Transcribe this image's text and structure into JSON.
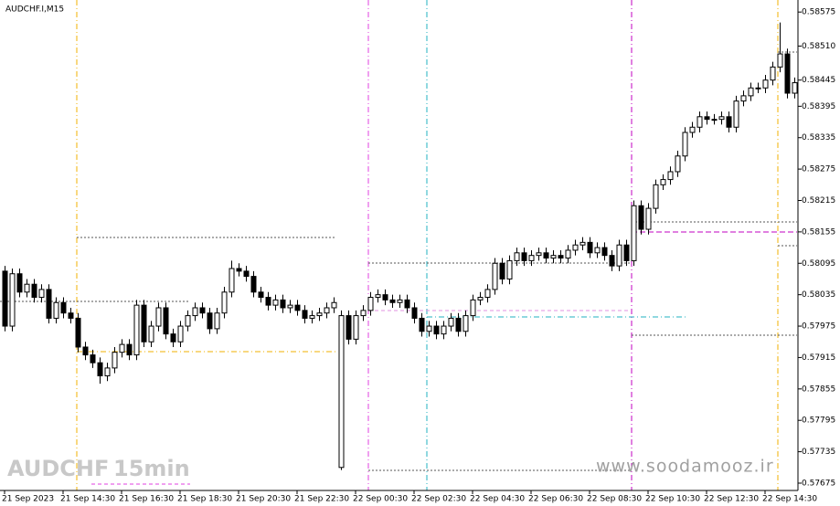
{
  "chart_data": {
    "type": "candlestick",
    "title": "AUDCHF.I,M15",
    "annotations": [
      "AUDCHF",
      "15min",
      "www.soodamooz.ir"
    ],
    "up_color": "#ffffff",
    "down_color": "#000000",
    "outline_color": "#000000",
    "ylim": [
      0.57661,
      0.58598
    ],
    "yticks": [
      0.58575,
      {
        "value": 0.5851,
        "label": "0.58510"
      },
      0.58445,
      0.58395,
      0.58335,
      0.58275,
      0.58215,
      0.58155,
      0.58095,
      0.58035,
      0.57975,
      0.57915,
      0.57855,
      0.57795,
      0.57735,
      0.57675
    ],
    "categories": [
      "21 Sep 2023",
      null,
      null,
      null,
      null,
      null,
      null,
      null,
      "21 Sep 14:30",
      null,
      null,
      null,
      null,
      null,
      null,
      null,
      "21 Sep 16:30",
      null,
      null,
      null,
      null,
      null,
      null,
      null,
      "21 Sep 18:30",
      null,
      null,
      null,
      null,
      null,
      null,
      null,
      "21 Sep 20:30",
      null,
      null,
      null,
      null,
      null,
      null,
      null,
      "21 Sep 22:30",
      null,
      null,
      null,
      null,
      null,
      null,
      null,
      "22 Sep 00:30",
      null,
      null,
      null,
      null,
      null,
      null,
      null,
      "22 Sep 02:30",
      null,
      null,
      null,
      null,
      null,
      null,
      null,
      "22 Sep 04:30",
      null,
      null,
      null,
      null,
      null,
      null,
      null,
      "22 Sep 06:30",
      null,
      null,
      null,
      null,
      null,
      null,
      null,
      "22 Sep 08:30",
      null,
      null,
      null,
      null,
      null,
      null,
      null,
      "22 Sep 10:30",
      null,
      null,
      null,
      null,
      null,
      null,
      null,
      "22 Sep 12:30",
      null,
      null,
      null,
      null,
      null,
      null,
      null,
      "22 Sep 14:30",
      null,
      null,
      null,
      null
    ],
    "open": [
      0.5808,
      0.57975,
      0.58075,
      0.5804,
      0.58055,
      0.5803,
      0.58045,
      0.5799,
      0.5802,
      0.58,
      0.5799,
      0.57935,
      0.5792,
      0.57905,
      0.5788,
      0.57895,
      0.57925,
      0.5794,
      0.5792,
      0.58015,
      0.57945,
      0.57975,
      0.5801,
      0.5796,
      0.57945,
      0.57975,
      0.57995,
      0.5801,
      0.58,
      0.5797,
      0.58,
      0.5804,
      0.58085,
      0.5808,
      0.5807,
      0.5804,
      0.5803,
      0.58015,
      0.58025,
      0.5801,
      0.58015,
      0.58005,
      0.5799,
      0.57995,
      0.58,
      0.5801,
      0.57705,
      0.57995,
      0.5795,
      0.57995,
      0.58005,
      0.5803,
      0.58035,
      0.58025,
      0.5802,
      0.58025,
      0.5801,
      0.5799,
      0.57965,
      0.57975,
      0.5796,
      0.57975,
      0.5799,
      0.57965,
      0.57995,
      0.58025,
      0.5803,
      0.58045,
      0.58095,
      0.58065,
      0.581,
      0.58115,
      0.581,
      0.5811,
      0.58115,
      0.58105,
      0.5811,
      0.58105,
      0.5812,
      0.5813,
      0.58135,
      0.58115,
      0.58125,
      0.5811,
      0.5809,
      0.5813,
      0.581,
      0.58205,
      0.5816,
      0.582,
      0.58245,
      0.58255,
      0.5827,
      0.583,
      0.58345,
      0.58355,
      0.58375,
      0.5837,
      0.5837,
      0.58375,
      0.58355,
      0.58405,
      0.58415,
      0.5843,
      0.5843,
      0.58445,
      0.5847,
      0.58495,
      0.5842
    ],
    "high": [
      0.5809,
      0.58085,
      0.58085,
      0.58065,
      0.58065,
      0.58055,
      0.58055,
      0.5803,
      0.5803,
      0.5801,
      0.58,
      0.57945,
      0.5793,
      0.57915,
      0.57905,
      0.57935,
      0.5795,
      0.5795,
      0.58025,
      0.58025,
      0.57985,
      0.5802,
      0.5802,
      0.5797,
      0.57985,
      0.58005,
      0.5802,
      0.5802,
      0.5801,
      0.5801,
      0.5805,
      0.581,
      0.58095,
      0.5809,
      0.5808,
      0.5805,
      0.5804,
      0.58035,
      0.58035,
      0.58025,
      0.58025,
      0.58015,
      0.58005,
      0.5801,
      0.5802,
      0.5803,
      0.58005,
      0.58005,
      0.58005,
      0.58015,
      0.5804,
      0.58045,
      0.58045,
      0.58035,
      0.58035,
      0.58035,
      0.5802,
      0.58,
      0.57985,
      0.57985,
      0.57985,
      0.58,
      0.58,
      0.58005,
      0.58035,
      0.5804,
      0.58055,
      0.58105,
      0.58105,
      0.5811,
      0.58125,
      0.58125,
      0.5812,
      0.58125,
      0.58125,
      0.5812,
      0.5812,
      0.5813,
      0.5814,
      0.58145,
      0.58145,
      0.58135,
      0.58135,
      0.5812,
      0.5814,
      0.5814,
      0.58215,
      0.58215,
      0.5821,
      0.58255,
      0.58265,
      0.5828,
      0.5831,
      0.58355,
      0.58365,
      0.58385,
      0.58385,
      0.5838,
      0.58385,
      0.58385,
      0.58415,
      0.58425,
      0.5844,
      0.5844,
      0.58455,
      0.5848,
      0.58555,
      0.58505,
      0.5845
    ],
    "low": [
      0.57965,
      0.57965,
      0.5803,
      0.5803,
      0.5802,
      0.5802,
      0.5798,
      0.5798,
      0.5799,
      0.5798,
      0.57925,
      0.5791,
      0.57895,
      0.57865,
      0.5787,
      0.57885,
      0.57915,
      0.5791,
      0.5791,
      0.57935,
      0.57935,
      0.57965,
      0.5795,
      0.57935,
      0.57935,
      0.57965,
      0.57985,
      0.5799,
      0.5796,
      0.5796,
      0.5799,
      0.5803,
      0.5807,
      0.5806,
      0.5803,
      0.5802,
      0.58005,
      0.58005,
      0.58,
      0.58,
      0.57995,
      0.5798,
      0.5798,
      0.57985,
      0.5799,
      0.58,
      0.577,
      0.5794,
      0.5794,
      0.57985,
      0.57995,
      0.5802,
      0.58015,
      0.5801,
      0.5801,
      0.58,
      0.5798,
      0.57955,
      0.57955,
      0.5795,
      0.5795,
      0.57965,
      0.57955,
      0.57955,
      0.57985,
      0.58015,
      0.5802,
      0.58035,
      0.58055,
      0.58055,
      0.5809,
      0.5809,
      0.5809,
      0.581,
      0.58095,
      0.58095,
      0.58095,
      0.58095,
      0.5811,
      0.5812,
      0.58105,
      0.58105,
      0.581,
      0.5808,
      0.5808,
      0.5809,
      0.5809,
      0.5815,
      0.5815,
      0.5819,
      0.58235,
      0.58245,
      0.5826,
      0.5829,
      0.58335,
      0.58345,
      0.5836,
      0.5836,
      0.5836,
      0.58345,
      0.58345,
      0.58395,
      0.58405,
      0.5842,
      0.5842,
      0.58435,
      0.5846,
      0.5841,
      0.5841
    ],
    "close": [
      0.57975,
      0.58075,
      0.5804,
      0.58055,
      0.5803,
      0.58045,
      0.5799,
      0.5802,
      0.58,
      0.5799,
      0.57935,
      0.5792,
      0.57905,
      0.5788,
      0.57895,
      0.57925,
      0.5794,
      0.5792,
      0.58015,
      0.57945,
      0.57975,
      0.5801,
      0.5796,
      0.57945,
      0.57975,
      0.57995,
      0.5801,
      0.58,
      0.5797,
      0.58,
      0.5804,
      0.58085,
      0.5808,
      0.5807,
      0.5804,
      0.5803,
      0.58015,
      0.58025,
      0.5801,
      0.58015,
      0.58005,
      0.5799,
      0.57995,
      0.58,
      0.5801,
      0.5802,
      0.57995,
      0.5795,
      0.57995,
      0.58005,
      0.5803,
      0.58035,
      0.58025,
      0.5802,
      0.58025,
      0.5801,
      0.5799,
      0.57965,
      0.57975,
      0.5796,
      0.57975,
      0.5799,
      0.57965,
      0.57995,
      0.58025,
      0.5803,
      0.58045,
      0.58095,
      0.58065,
      0.581,
      0.58115,
      0.581,
      0.5811,
      0.58115,
      0.58105,
      0.5811,
      0.58105,
      0.5812,
      0.5813,
      0.58135,
      0.58115,
      0.58125,
      0.5811,
      0.5809,
      0.5813,
      0.581,
      0.58205,
      0.5816,
      0.582,
      0.58245,
      0.58255,
      0.5827,
      0.583,
      0.58345,
      0.58355,
      0.58375,
      0.5837,
      0.5837,
      0.58375,
      0.58355,
      0.58405,
      0.58415,
      0.5843,
      0.5843,
      0.58445,
      0.5847,
      0.58495,
      0.5842,
      0.5844
    ]
  }
}
